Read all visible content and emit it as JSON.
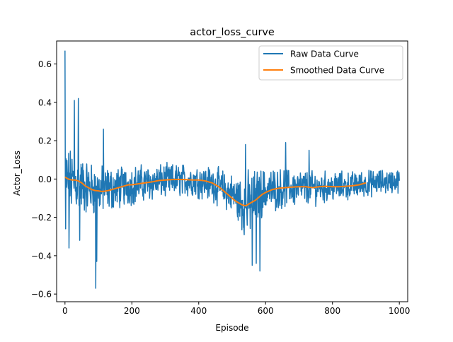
{
  "chart_data": {
    "type": "line",
    "title": "actor_loss_curve",
    "xlabel": "Episode",
    "ylabel": "Actor_Loss",
    "xlim": [
      -25,
      1025
    ],
    "ylim": [
      -0.64,
      0.72
    ],
    "xticks": [
      0,
      200,
      400,
      600,
      800,
      1000
    ],
    "xtick_labels": [
      "0",
      "200",
      "400",
      "600",
      "800",
      "1000"
    ],
    "yticks": [
      -0.6,
      -0.4,
      -0.2,
      0.0,
      0.2,
      0.4,
      0.6
    ],
    "ytick_labels": [
      "−0.6",
      "−0.4",
      "−0.2",
      "0.0",
      "0.2",
      "0.4",
      "0.6"
    ],
    "grid": false,
    "legend": {
      "position": "top-right"
    },
    "series": [
      {
        "name": "Raw Data Curve",
        "color": "#1f77b4",
        "x_range": [
          0,
          1000
        ],
        "n_points": 1001,
        "envelope": {
          "x": [
            0,
            10,
            30,
            60,
            100,
            150,
            200,
            250,
            300,
            350,
            400,
            450,
            500,
            520,
            540,
            560,
            580,
            600,
            650,
            700,
            750,
            800,
            850,
            900,
            950,
            1000
          ],
          "mean": [
            0.0,
            -0.01,
            -0.02,
            -0.04,
            -0.06,
            -0.05,
            -0.03,
            -0.02,
            -0.01,
            -0.005,
            -0.01,
            -0.03,
            -0.08,
            -0.11,
            -0.14,
            -0.12,
            -0.08,
            -0.06,
            -0.05,
            -0.045,
            -0.045,
            -0.04,
            -0.035,
            -0.025,
            -0.015,
            -0.01
          ],
          "amplitude": [
            0.22,
            0.2,
            0.19,
            0.17,
            0.15,
            0.13,
            0.12,
            0.11,
            0.1,
            0.1,
            0.1,
            0.11,
            0.12,
            0.16,
            0.2,
            0.19,
            0.16,
            0.13,
            0.12,
            0.11,
            0.1,
            0.09,
            0.085,
            0.08,
            0.075,
            0.07
          ]
        },
        "spikes": [
          {
            "x": 0,
            "y": 0.67
          },
          {
            "x": 2,
            "y": -0.26
          },
          {
            "x": 12,
            "y": -0.36
          },
          {
            "x": 28,
            "y": 0.41
          },
          {
            "x": 40,
            "y": 0.42
          },
          {
            "x": 44,
            "y": -0.32
          },
          {
            "x": 92,
            "y": -0.57
          },
          {
            "x": 95,
            "y": -0.43
          },
          {
            "x": 115,
            "y": 0.26
          },
          {
            "x": 560,
            "y": -0.45
          },
          {
            "x": 572,
            "y": -0.44
          },
          {
            "x": 583,
            "y": -0.48
          },
          {
            "x": 540,
            "y": 0.18
          },
          {
            "x": 660,
            "y": 0.19
          },
          {
            "x": 730,
            "y": 0.15
          }
        ]
      },
      {
        "name": "Smoothed Data Curve",
        "color": "#ff7f0e",
        "x": [
          0,
          10,
          20,
          30,
          40,
          50,
          60,
          70,
          80,
          90,
          100,
          110,
          120,
          130,
          140,
          150,
          160,
          170,
          180,
          190,
          200,
          220,
          240,
          260,
          280,
          300,
          320,
          340,
          360,
          380,
          400,
          420,
          440,
          460,
          480,
          500,
          510,
          520,
          530,
          540,
          550,
          560,
          570,
          580,
          590,
          600,
          620,
          640,
          660,
          680,
          700,
          720,
          740,
          760,
          780,
          800,
          820,
          840,
          860,
          880,
          900
        ],
        "y": [
          0.01,
          0.0,
          -0.005,
          -0.005,
          -0.01,
          -0.02,
          -0.035,
          -0.045,
          -0.055,
          -0.06,
          -0.062,
          -0.065,
          -0.063,
          -0.06,
          -0.055,
          -0.05,
          -0.045,
          -0.04,
          -0.035,
          -0.03,
          -0.03,
          -0.025,
          -0.02,
          -0.015,
          -0.008,
          -0.005,
          -0.003,
          -0.002,
          -0.003,
          -0.005,
          -0.005,
          -0.01,
          -0.02,
          -0.04,
          -0.07,
          -0.1,
          -0.115,
          -0.125,
          -0.135,
          -0.14,
          -0.13,
          -0.12,
          -0.11,
          -0.095,
          -0.08,
          -0.07,
          -0.055,
          -0.048,
          -0.045,
          -0.042,
          -0.04,
          -0.04,
          -0.045,
          -0.04,
          -0.038,
          -0.04,
          -0.04,
          -0.038,
          -0.035,
          -0.03,
          -0.02
        ]
      }
    ]
  }
}
